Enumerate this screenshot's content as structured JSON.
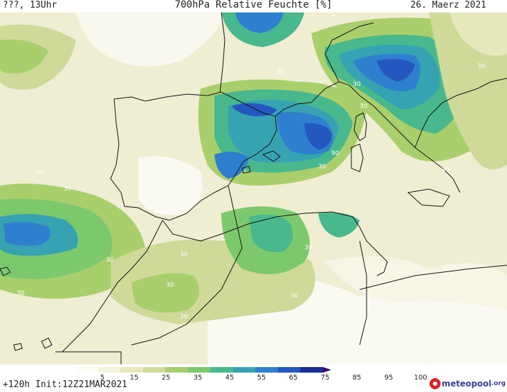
{
  "header": {
    "location": "???, 13Uhr",
    "title": "700hPa Relative Feuchte [%]",
    "date": "26. Maerz 2021"
  },
  "legend": {
    "ticks": [
      "5",
      "15",
      "25",
      "35",
      "45",
      "55",
      "65",
      "75",
      "85",
      "95",
      "100"
    ],
    "colors": [
      "#fdfdf7",
      "#f3f2dc",
      "#e6e8bc",
      "#cfd998",
      "#a9cf6c",
      "#7cc96d",
      "#49b88c",
      "#36a3b2",
      "#2f7fcf",
      "#2457c0",
      "#1c2e98",
      "#3b0a6e"
    ]
  },
  "footer": {
    "run": "+120h  Init:12Z21MAR2021"
  },
  "logo": {
    "name": "meteopool",
    "tld": ".org"
  },
  "map": {
    "contour_labels": [
      "30",
      "30",
      "30",
      "90",
      "30",
      "30",
      "30",
      "30",
      "30",
      "30",
      "30",
      "30",
      "30",
      "30",
      "30",
      "30",
      "30"
    ]
  }
}
